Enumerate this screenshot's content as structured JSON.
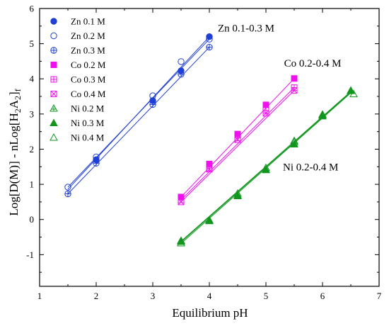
{
  "chart_data": {
    "type": "scatter",
    "xlabel": "Equilibrium pH",
    "ylabel": "Log[D(M)] - nLog[H",
    "ylabel_sub2": "2",
    "ylabel_mid": "A",
    "ylabel_sub_last": "2",
    "ylabel_end": "]",
    "ylabel_sub_f": "f",
    "xlim": [
      1,
      7
    ],
    "ylim": [
      -1.9,
      6
    ],
    "xticks": [
      1,
      2,
      3,
      4,
      5,
      6,
      7
    ],
    "yticks": [
      -1,
      0,
      1,
      2,
      3,
      4,
      5,
      6
    ],
    "grid": false,
    "legend_position": "top-left",
    "colors": {
      "zn": "#1f3fd6",
      "co": "#ee11ee",
      "ni": "#11961e"
    },
    "series": [
      {
        "name": "Zn 0.1 M",
        "group": "zn",
        "marker": "circle-filled",
        "x": [
          2.0,
          3.0,
          3.5,
          4.0
        ],
        "y": [
          1.7,
          3.38,
          4.23,
          5.2
        ],
        "fit": [
          [
            1.5,
            0.86
          ],
          [
            4.0,
            5.2
          ]
        ]
      },
      {
        "name": "Zn 0.2 M",
        "group": "zn",
        "marker": "circle-open",
        "x": [
          1.5,
          2.0,
          3.0,
          3.5,
          4.0
        ],
        "y": [
          0.92,
          1.78,
          3.52,
          4.49,
          5.13
        ],
        "fit": [
          [
            1.5,
            0.92
          ],
          [
            4.0,
            5.13
          ]
        ]
      },
      {
        "name": "Zn 0.3 M",
        "group": "zn",
        "marker": "circle-plus",
        "x": [
          1.5,
          2.0,
          3.0,
          3.5,
          4.0
        ],
        "y": [
          0.73,
          1.6,
          3.27,
          4.13,
          4.9
        ],
        "fit": [
          [
            1.5,
            0.73
          ],
          [
            4.0,
            4.9
          ]
        ]
      },
      {
        "name": "Co 0.2 M",
        "group": "co",
        "marker": "square-filled",
        "x": [
          3.5,
          4.0,
          4.5,
          5.0,
          5.5
        ],
        "y": [
          0.64,
          1.58,
          2.43,
          3.26,
          4.01
        ],
        "fit": [
          [
            3.5,
            0.64
          ],
          [
            5.5,
            4.01
          ]
        ]
      },
      {
        "name": "Co 0.3 M",
        "group": "co",
        "marker": "square-plus",
        "x": [
          3.5,
          4.0,
          4.5,
          5.0,
          5.5
        ],
        "y": [
          0.56,
          1.46,
          2.32,
          3.1,
          3.75
        ],
        "fit": [
          [
            3.5,
            0.56
          ],
          [
            5.5,
            3.75
          ]
        ]
      },
      {
        "name": "Co 0.4 M",
        "group": "co",
        "marker": "square-x",
        "x": [
          3.5,
          4.0,
          4.5,
          5.0,
          5.5
        ],
        "y": [
          0.5,
          1.43,
          2.27,
          3.02,
          3.67
        ],
        "fit": [
          [
            3.5,
            0.5
          ],
          [
            5.5,
            3.67
          ]
        ]
      },
      {
        "name": "Ni 0.2 M",
        "group": "ni",
        "marker": "triangle-plus",
        "x": [
          3.5,
          4.0,
          4.5,
          5.0,
          5.5,
          6.0,
          6.5
        ],
        "y": [
          -0.6,
          -0.02,
          0.67,
          1.42,
          2.2,
          2.97,
          3.66
        ],
        "fit": [
          [
            3.5,
            -0.62
          ],
          [
            6.5,
            3.64
          ]
        ]
      },
      {
        "name": "Ni 0.3 M",
        "group": "ni",
        "marker": "triangle-filled",
        "x": [
          3.5,
          4.0,
          4.5,
          5.0,
          5.5,
          6.0,
          6.5
        ],
        "y": [
          -0.63,
          -0.04,
          0.69,
          1.41,
          2.14,
          2.94,
          3.67
        ],
        "fit": [
          [
            3.5,
            -0.64
          ],
          [
            6.5,
            3.62
          ]
        ]
      },
      {
        "name": "Ni 0.4 M",
        "group": "ni",
        "marker": "triangle-open",
        "x": [
          3.5,
          4.0,
          4.5,
          5.0,
          5.5,
          6.0,
          6.55
        ],
        "y": [
          -0.67,
          -0.02,
          0.74,
          1.47,
          2.24,
          2.99,
          3.57
        ],
        "fit": [
          [
            3.5,
            -0.68
          ],
          [
            6.5,
            3.6
          ]
        ]
      }
    ],
    "annotations": [
      {
        "text": "Zn 0.1-0.3 M",
        "x": 4.15,
        "y": 5.35
      },
      {
        "text": "Co 0.2-0.4 M",
        "x": 5.32,
        "y": 4.35
      },
      {
        "text": "Ni 0.2-0.4 M",
        "x": 5.3,
        "y": 1.4
      }
    ]
  }
}
